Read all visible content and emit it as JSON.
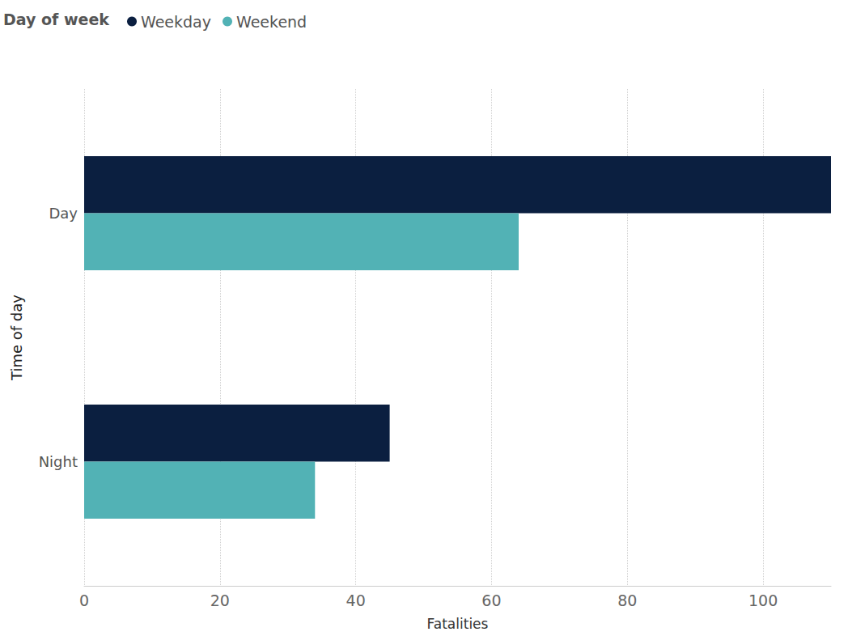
{
  "chart_data": {
    "type": "bar",
    "orientation": "horizontal",
    "legend_title": "Day of week",
    "categories": [
      "Day",
      "Night"
    ],
    "series": [
      {
        "name": "Weekday",
        "color": "#0b1f40",
        "values": [
          110,
          45
        ]
      },
      {
        "name": "Weekend",
        "color": "#52b2b5",
        "values": [
          64,
          34
        ]
      }
    ],
    "xlabel": "Fatalities",
    "ylabel": "Time of day",
    "xlim": [
      0,
      110
    ],
    "xticks": [
      0,
      20,
      40,
      60,
      80,
      100
    ],
    "grid": true,
    "legend": "top-left"
  }
}
